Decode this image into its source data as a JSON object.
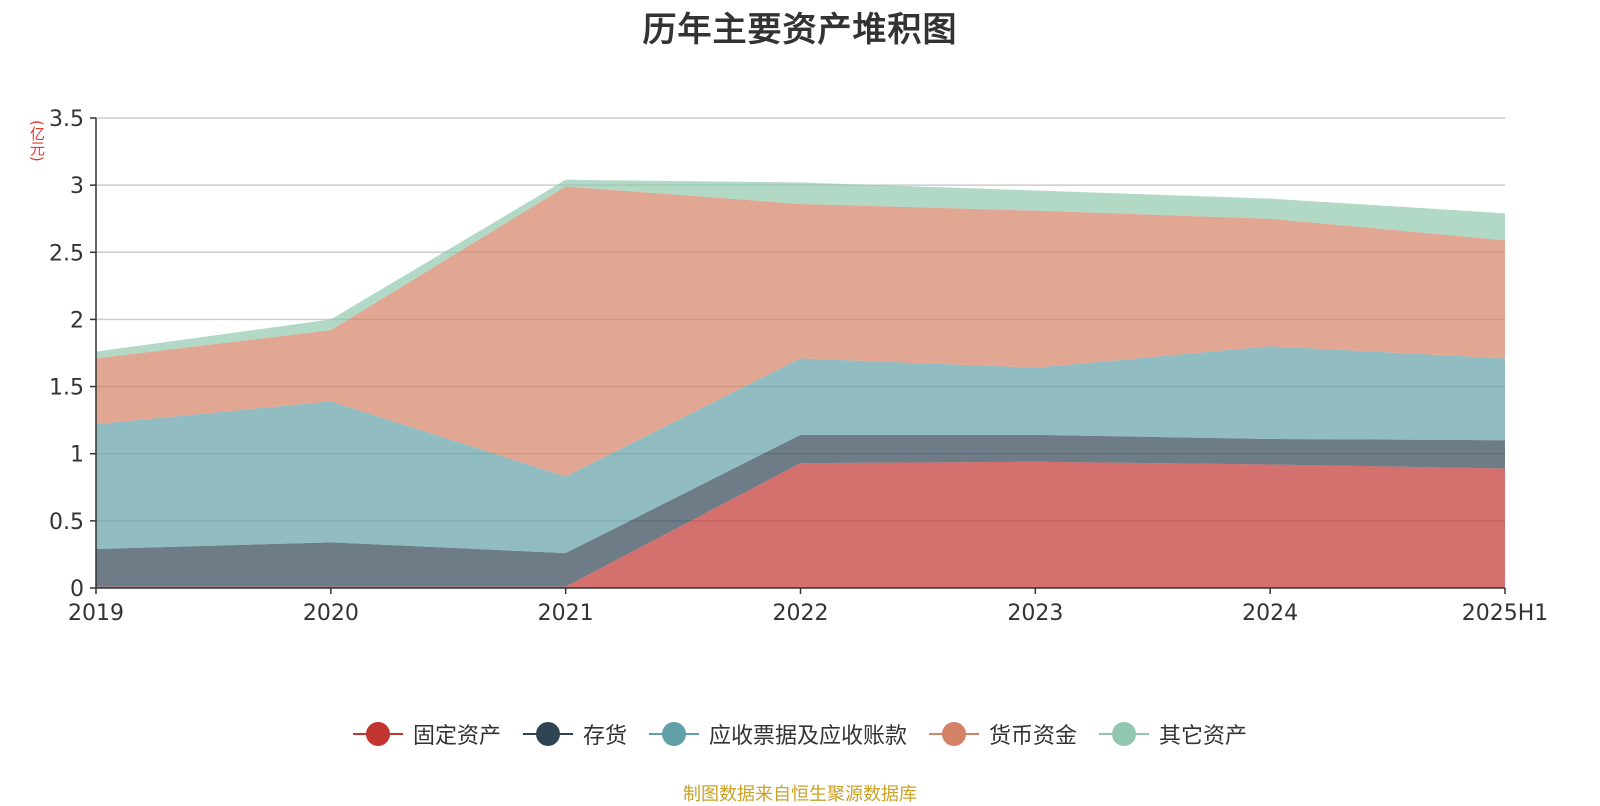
{
  "chart_data": {
    "type": "area",
    "stacked": true,
    "title": "历年主要资产堆积图",
    "unit_label": "(亿元)",
    "categories": [
      "2019",
      "2020",
      "2021",
      "2022",
      "2023",
      "2024",
      "2025H1"
    ],
    "ylim": [
      0,
      3.5
    ],
    "yticks": [
      "0",
      "0.5",
      "1",
      "1.5",
      "2",
      "2.5",
      "3",
      "3.5"
    ],
    "grid": true,
    "legend_position": "bottom",
    "series": [
      {
        "name": "固定资产",
        "color": "#c23531",
        "values": [
          0.01,
          0.01,
          0.01,
          0.93,
          0.94,
          0.92,
          0.89
        ]
      },
      {
        "name": "存货",
        "color": "#2f4554",
        "values": [
          0.28,
          0.33,
          0.25,
          0.21,
          0.2,
          0.19,
          0.21
        ]
      },
      {
        "name": "应收票据及应收账款",
        "color": "#61a0a8",
        "values": [
          0.93,
          1.05,
          0.57,
          0.57,
          0.5,
          0.69,
          0.61
        ]
      },
      {
        "name": "货币资金",
        "color": "#d48265",
        "values": [
          0.49,
          0.53,
          2.16,
          1.15,
          1.17,
          0.95,
          0.88
        ]
      },
      {
        "name": "其它资产",
        "color": "#91c7ae",
        "values": [
          0.05,
          0.08,
          0.05,
          0.16,
          0.15,
          0.15,
          0.2
        ]
      }
    ]
  },
  "source_note": "制图数据来自恒生聚源数据库"
}
